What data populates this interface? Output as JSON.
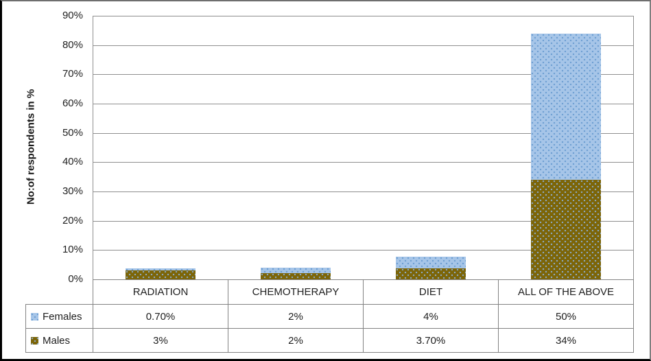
{
  "chart_data": {
    "type": "bar",
    "stacked": true,
    "title": "",
    "ylabel": "No:of respondents in %",
    "xlabel": "",
    "categories": [
      "RADIATION",
      "CHEMOTHERAPY",
      "DIET",
      "ALL OF THE ABOVE"
    ],
    "series": [
      {
        "name": "Females",
        "values": [
          0.7,
          2,
          4,
          50
        ],
        "labels": [
          "0.70%",
          "2%",
          "4%",
          "50%"
        ],
        "color": "#a6c5e8",
        "dot_color": "#6d9fd2",
        "pattern": "dotted"
      },
      {
        "name": "Males",
        "values": [
          3,
          2,
          3.7,
          34
        ],
        "labels": [
          "3%",
          "2%",
          "3.70%",
          "34%"
        ],
        "color": "#7c6508",
        "dot_color": "#8cabc6",
        "pattern": "dotted"
      }
    ],
    "stack_order_bottom_to_top": [
      "Males",
      "Females"
    ],
    "ylim": [
      0,
      90
    ],
    "ytick_step": 10,
    "ytick_labels": [
      "0%",
      "10%",
      "20%",
      "30%",
      "40%",
      "50%",
      "60%",
      "70%",
      "80%",
      "90%"
    ],
    "grid": true,
    "gridline_color": "#8e8e8e",
    "legend_position": "data-table-left",
    "text_color": "#202020"
  }
}
